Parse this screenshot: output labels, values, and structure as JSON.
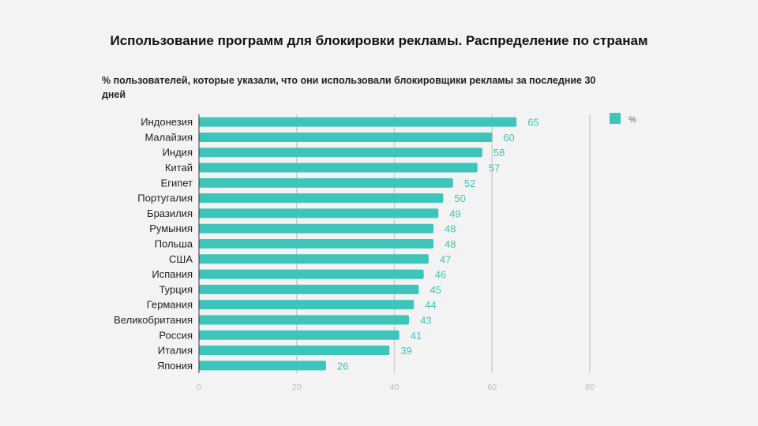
{
  "title": "Использование программ для блокировки рекламы. Распределение по странам",
  "subtitle": "% пользователей, которые указали, что они использовали блокировщики рекламы за последние 30 дней",
  "chart_data": {
    "type": "bar",
    "orientation": "horizontal",
    "title": "Использование программ для блокировки рекламы. Распределение по странам",
    "subtitle": "% пользователей, которые указали, что они использовали блокировщики рекламы за последние 30 дней",
    "categories": [
      "Индонезия",
      "Малайзия",
      "Индия",
      "Китай",
      "Египет",
      "Португалия",
      "Бразилия",
      "Румыния",
      "Польша",
      "США",
      "Испания",
      "Турция",
      "Германия",
      "Великобритания",
      "Россия",
      "Италия",
      "Япония"
    ],
    "series": [
      {
        "name": "%",
        "color": "#3ec5bb",
        "values": [
          65,
          60,
          58,
          57,
          52,
          50,
          49,
          48,
          48,
          47,
          46,
          45,
          44,
          43,
          41,
          39,
          26
        ]
      }
    ],
    "xlabel": "",
    "ylabel": "",
    "xlim": [
      0,
      80
    ],
    "xticks": [
      0,
      20,
      40,
      60,
      80
    ],
    "grid": true,
    "legend": "top-right",
    "data_labels": true
  }
}
